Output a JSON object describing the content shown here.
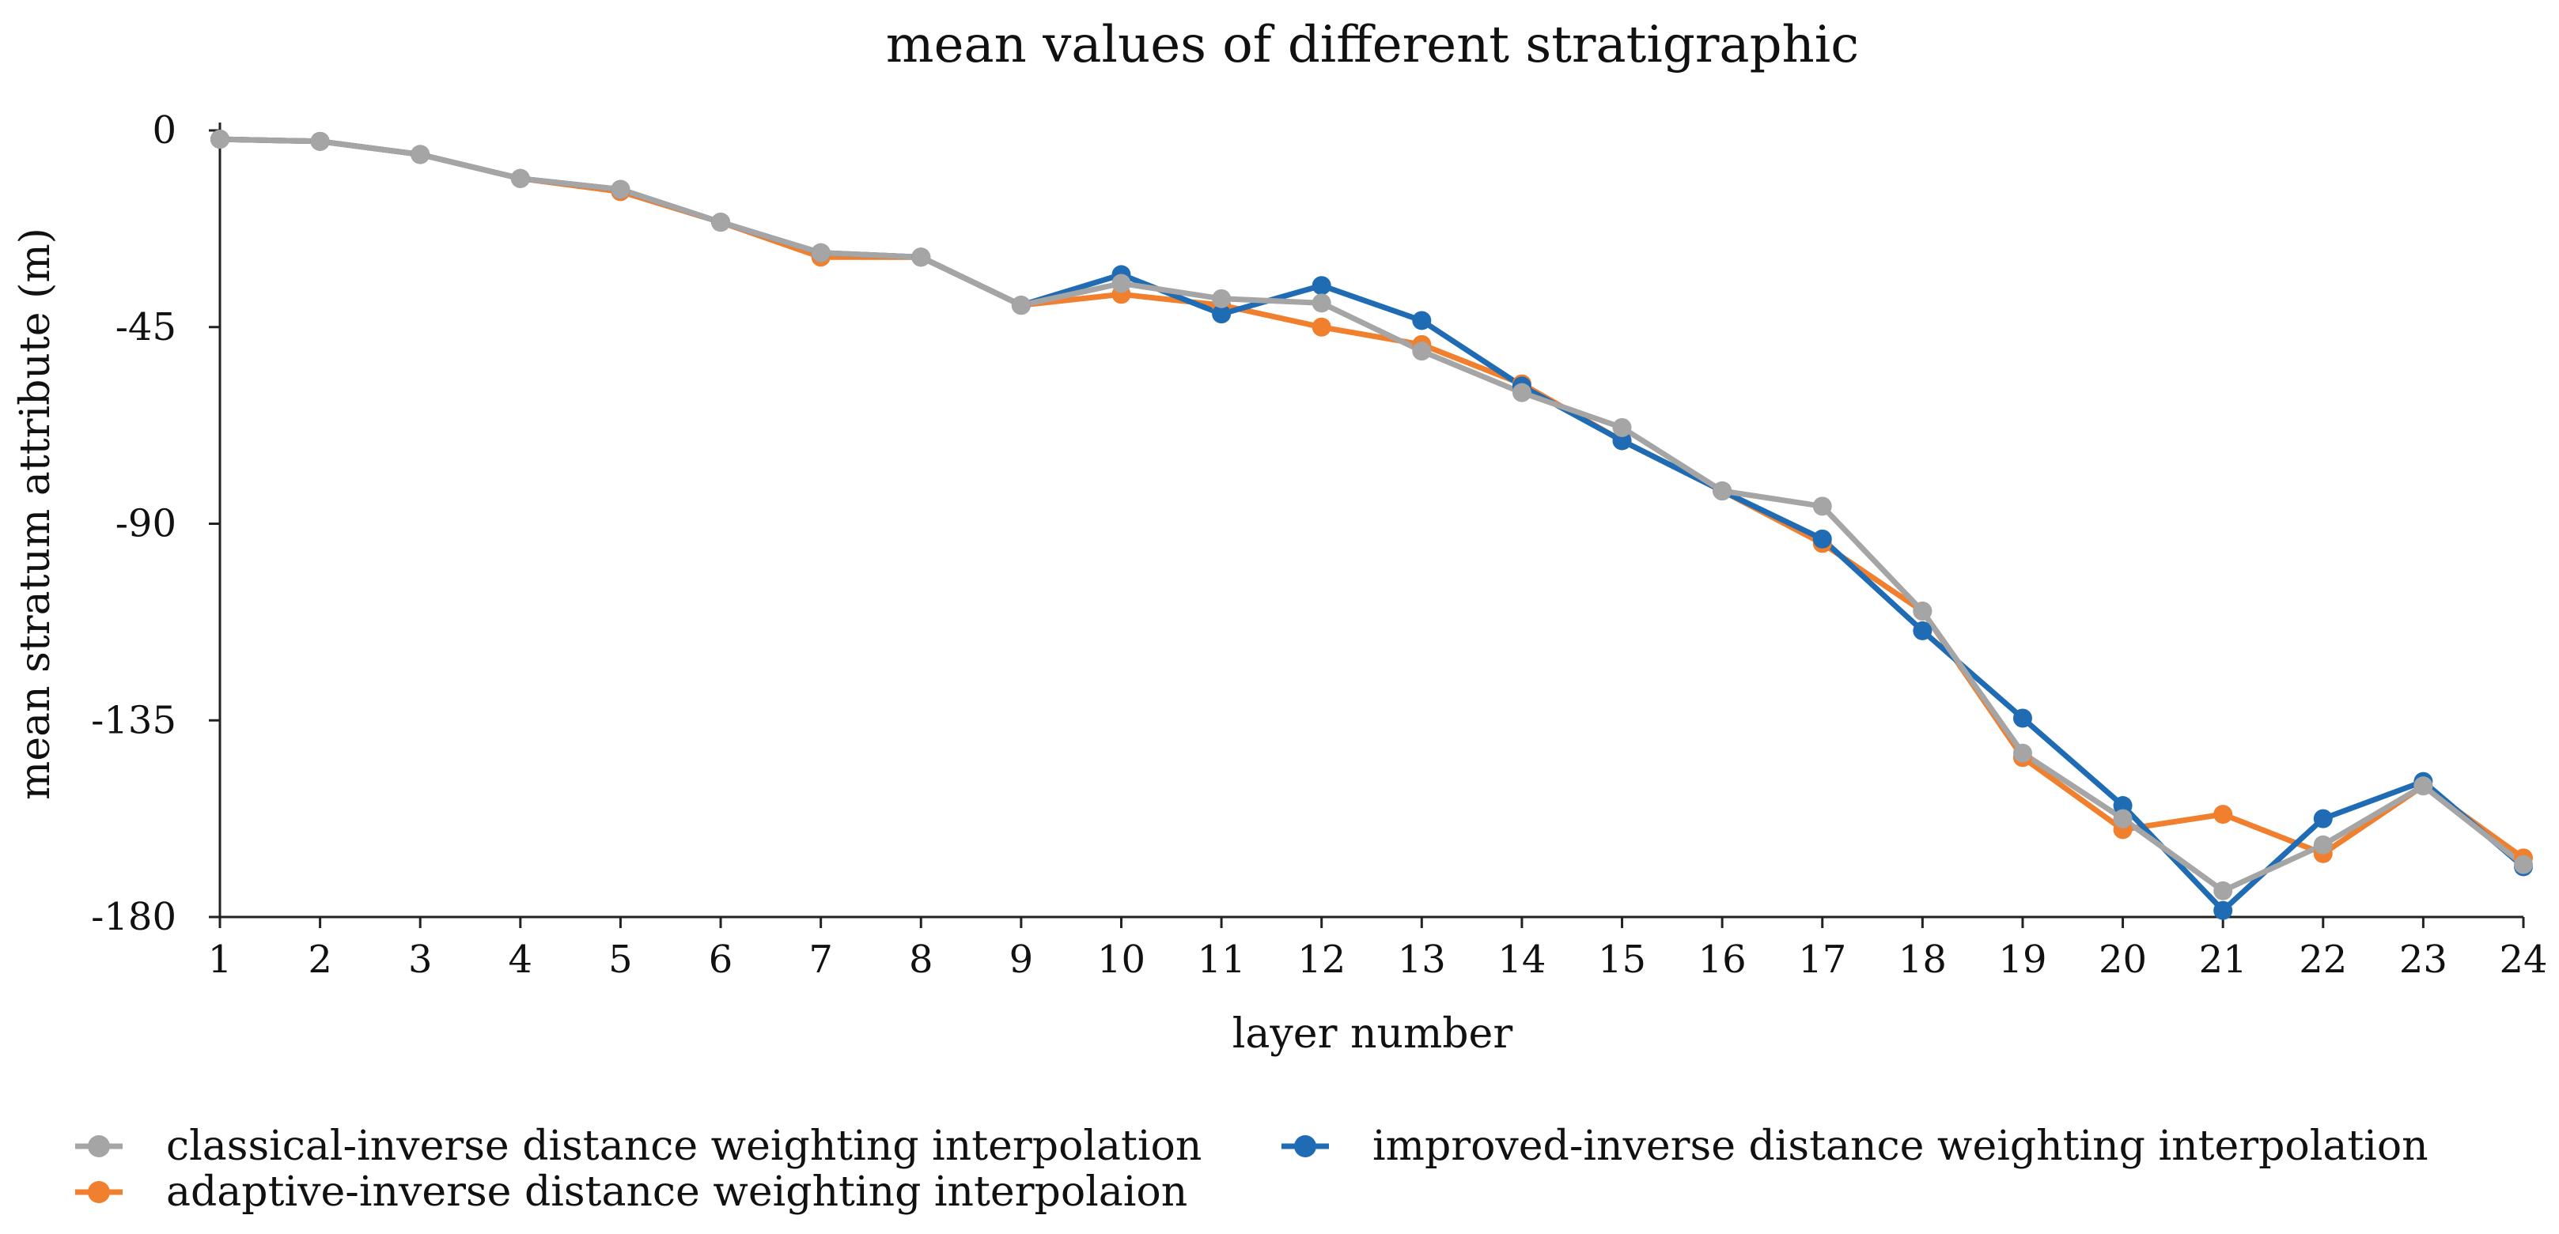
{
  "chart_data": {
    "type": "line",
    "title": "mean values of different stratigraphic",
    "xlabel": "layer number",
    "ylabel": "mean stratum attribute (m)",
    "x": [
      1,
      2,
      3,
      4,
      5,
      6,
      7,
      8,
      9,
      10,
      11,
      12,
      13,
      14,
      15,
      16,
      17,
      18,
      19,
      20,
      21,
      22,
      23,
      24
    ],
    "xlim": [
      1,
      24
    ],
    "ylim": [
      -180,
      0
    ],
    "yticks": [
      0,
      -45,
      -90,
      -135,
      -180
    ],
    "grid": false,
    "legend": "bottom",
    "series": [
      {
        "name": "classical-inverse distance weighting interpolation",
        "color": "#a5a5a5",
        "values": [
          -2,
          -2.5,
          -5.5,
          -11,
          -13.5,
          -21,
          -28,
          -29,
          -40,
          -35,
          -38.5,
          -39.5,
          -50.5,
          -60,
          -68,
          -82.5,
          -86,
          -110,
          -142.5,
          -157.5,
          -174,
          -163.5,
          -150,
          -168
        ]
      },
      {
        "name": "adaptive-inverse distance weighting interpolaion",
        "color": "#f07f2e",
        "values": [
          -2,
          -2.5,
          -5.5,
          -11,
          -14,
          -21,
          -29,
          -29,
          -40,
          -37.5,
          -40,
          -45,
          -49,
          -58,
          -71,
          -82.5,
          -94.5,
          -110,
          -143.5,
          -160,
          -156.5,
          -165.5,
          -150,
          -166.5
        ]
      },
      {
        "name": "improved-inverse distance weighting interpolation",
        "color": "#1f6cb5",
        "values": [
          -2,
          -2.5,
          -5.5,
          -11,
          -13.5,
          -21,
          -28,
          -29,
          -40,
          -33,
          -42,
          -35.5,
          -43.5,
          -58.5,
          -71,
          -82.5,
          -93.5,
          -114.5,
          -134.5,
          -154.5,
          -178.5,
          -157.5,
          -149,
          -168.5
        ]
      }
    ]
  }
}
